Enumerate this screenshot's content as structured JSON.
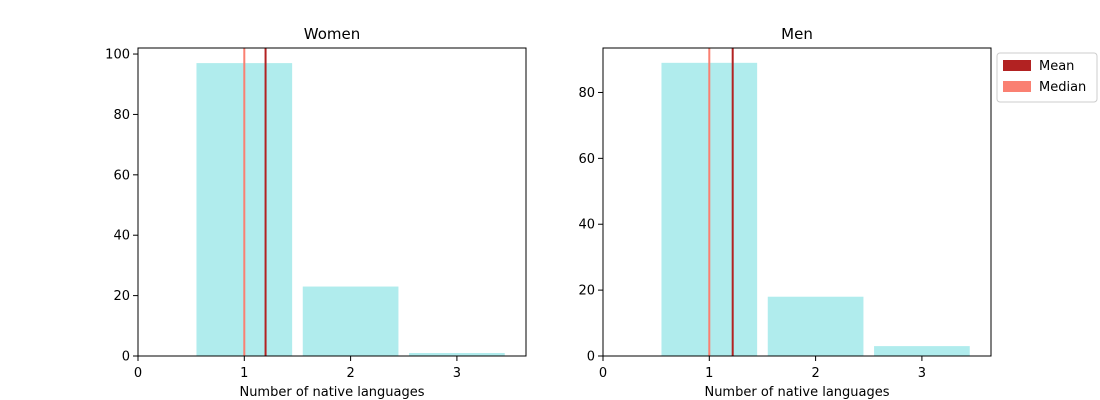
{
  "colors": {
    "bar": "#b0eced",
    "mean": "#b22222",
    "median": "#fa8072"
  },
  "legend": {
    "placement": "outside-right",
    "items": [
      {
        "label": "Mean",
        "color_key": "mean"
      },
      {
        "label": "Median",
        "color_key": "median"
      }
    ]
  },
  "chart_data": [
    {
      "type": "bar",
      "title": "Women",
      "xlabel": "Number of native languages",
      "ylabel": "",
      "categories": [
        1,
        2,
        3
      ],
      "values": [
        97,
        23,
        1
      ],
      "xlim": [
        0,
        3.65
      ],
      "ylim": [
        0,
        102
      ],
      "xticks": [
        0,
        1,
        2,
        3
      ],
      "yticks": [
        0,
        20,
        40,
        60,
        80,
        100
      ],
      "mean": 1.2,
      "median": 1.0
    },
    {
      "type": "bar",
      "title": "Men",
      "xlabel": "Number of native languages",
      "ylabel": "",
      "categories": [
        1,
        2,
        3
      ],
      "values": [
        89,
        18,
        3
      ],
      "xlim": [
        0,
        3.65
      ],
      "ylim": [
        0,
        93.5
      ],
      "xticks": [
        0,
        1,
        2,
        3
      ],
      "yticks": [
        0,
        20,
        40,
        60,
        80
      ],
      "mean": 1.22,
      "median": 1.0
    }
  ]
}
